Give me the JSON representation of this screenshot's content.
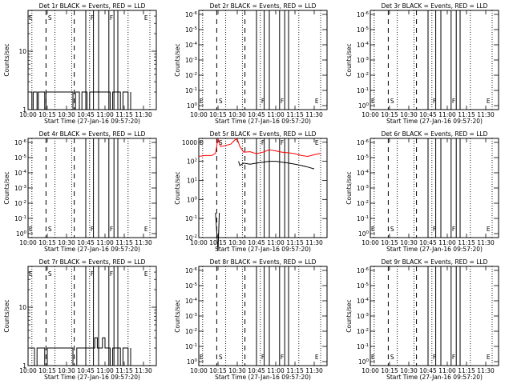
{
  "chart_data": [
    {
      "type": "line",
      "title": "Det 1r BLACK = Events, RED = LLD",
      "ylabel": "Counts/sec",
      "xlabel": "Start Time (27-Jan-16 09:57:20)",
      "xticks": [
        "10:00",
        "10:15",
        "10:30",
        "10:45",
        "11:00",
        "11:15",
        "11:30"
      ],
      "yticks": [
        "1",
        "10"
      ],
      "yscale": "log",
      "ylim": [
        1,
        50
      ],
      "xlim": [
        "10:00",
        "11:40"
      ],
      "markers": [
        "E",
        "S",
        "F",
        "F",
        "E"
      ],
      "series": [
        {
          "color": "#000000",
          "x": [
            "10:01",
            "10:02",
            "10:03",
            "10:04",
            "10:05",
            "10:06",
            "10:07",
            "10:08",
            "10:09",
            "10:10",
            "10:11",
            "10:12",
            "10:13",
            "10:14",
            "10:15",
            "10:16",
            "10:20",
            "10:25",
            "10:30",
            "10:35",
            "10:37",
            "10:40",
            "10:42",
            "10:44",
            "10:46",
            "10:48",
            "10:50",
            "10:52",
            "10:54",
            "10:56",
            "10:58",
            "11:00",
            "11:02",
            "11:04",
            "11:06",
            "11:08",
            "11:10",
            "11:12",
            "11:14",
            "11:16",
            "11:18",
            "11:20"
          ],
          "y": [
            2,
            2,
            1,
            2,
            2,
            2,
            1,
            2,
            2,
            2,
            2,
            2,
            1,
            2,
            2,
            2,
            2,
            2,
            2,
            1,
            2,
            1,
            2,
            2,
            1,
            2,
            2,
            2,
            2,
            2,
            2,
            2,
            2,
            1,
            2,
            2,
            2,
            1,
            2,
            2,
            1,
            2
          ]
        }
      ]
    },
    {
      "type": "line",
      "title": "Det 2r BLACK = Events, RED = LLD",
      "ylabel": "Counts/sec",
      "xlabel": "Start Time (27-Jan-16 09:57:20)",
      "xticks": [
        "10:00",
        "10:15",
        "10:30",
        "10:45",
        "11:00",
        "11:15",
        "11:30"
      ],
      "yticks": [
        "10^0",
        "10^-1",
        "10^-2",
        "10^-3",
        "10^-4",
        "10^-5",
        "10^-6"
      ],
      "yscale": "log",
      "markers": [
        "E",
        "S",
        "F",
        "F",
        "E"
      ],
      "series": []
    },
    {
      "type": "line",
      "title": "Det 3r BLACK = Events, RED = LLD",
      "ylabel": "Counts/sec",
      "xlabel": "Start Time (27-Jan-16 09:57:20)",
      "xticks": [
        "10:00",
        "10:15",
        "10:30",
        "10:45",
        "11:00",
        "11:15",
        "11:30"
      ],
      "yticks": [
        "10^0",
        "10^-1",
        "10^-2",
        "10^-3",
        "10^-4",
        "10^-5",
        "10^-6"
      ],
      "yscale": "log",
      "markers": [
        "E",
        "S",
        "F",
        "F",
        "E"
      ],
      "series": []
    },
    {
      "type": "line",
      "title": "Det 4r BLACK = Events, RED = LLD",
      "ylabel": "Counts/sec",
      "xlabel": "Start Time (27-Jan-16 09:57:20)",
      "xticks": [
        "10:00",
        "10:15",
        "10:30",
        "10:45",
        "11:00",
        "11:15",
        "11:30"
      ],
      "yticks": [
        "10^0",
        "10^-1",
        "10^-2",
        "10^-3",
        "10^-4",
        "10^-5",
        "10^-6"
      ],
      "yscale": "log",
      "markers": [
        "E",
        "S",
        "F",
        "F",
        "E"
      ],
      "series": []
    },
    {
      "type": "line",
      "title": "Det 5r BLACK = Events, RED = LLD",
      "ylabel": "Counts/sec",
      "xlabel": "Start Time (27-Jan-16 09:57:20)",
      "xticks": [
        "10:00",
        "10:15",
        "10:30",
        "10:45",
        "11:00",
        "11:15",
        "11:30"
      ],
      "yticks": [
        "1000",
        "10^2",
        "10^1",
        "10^0",
        "10^-1",
        "10^-2"
      ],
      "yscale": "log",
      "markers": [
        "E",
        "S",
        "F",
        "F",
        "E"
      ],
      "series": [
        {
          "color": "#ff0000",
          "x": [
            "10:00",
            "10:05",
            "10:10",
            "10:13",
            "10:15",
            "10:17",
            "10:20",
            "10:25",
            "10:28",
            "10:30",
            "10:32",
            "10:35",
            "10:40",
            "10:45",
            "10:50",
            "10:55",
            "11:00",
            "11:05",
            "11:10",
            "11:15",
            "11:20",
            "11:25",
            "11:30",
            "11:35"
          ],
          "y": [
            180,
            200,
            200,
            260,
            1500,
            600,
            650,
            800,
            1300,
            1500,
            600,
            300,
            320,
            250,
            300,
            400,
            350,
            300,
            280,
            250,
            200,
            180,
            220,
            260
          ]
        },
        {
          "color": "#000000",
          "x": [
            "10:00",
            "10:05",
            "10:10",
            "10:13",
            "10:15",
            "10:16",
            "10:17",
            "10:18",
            "10:20",
            "10:25",
            "10:30",
            "10:31",
            "10:32",
            "10:35",
            "10:40",
            "10:45",
            "10:50",
            "10:55",
            "11:00",
            "11:05",
            "11:10",
            "11:15",
            "11:20",
            "11:25",
            "11:30"
          ],
          "y": [
            null,
            null,
            null,
            0.2,
            0.002,
            0.2,
            null,
            null,
            null,
            null,
            null,
            100,
            60,
            80,
            70,
            80,
            90,
            100,
            100,
            90,
            80,
            70,
            60,
            50,
            40
          ]
        }
      ]
    },
    {
      "type": "line",
      "title": "Det 6r BLACK = Events, RED = LLD",
      "ylabel": "Counts/sec",
      "xlabel": "Start Time (27-Jan-16 09:57:20)",
      "xticks": [
        "10:00",
        "10:15",
        "10:30",
        "10:45",
        "11:00",
        "11:15",
        "11:30"
      ],
      "yticks": [
        "10^0",
        "10^-1",
        "10^-2",
        "10^-3",
        "10^-4",
        "10^-5",
        "10^-6"
      ],
      "yscale": "log",
      "markers": [
        "E",
        "S",
        "F",
        "F",
        "E"
      ],
      "series": []
    },
    {
      "type": "line",
      "title": "Det 7r BLACK = Events, RED = LLD",
      "ylabel": "Counts/sec",
      "xlabel": "Start Time (27-Jan-16 09:57:20)",
      "xticks": [
        "10:00",
        "10:15",
        "10:30",
        "10:45",
        "11:00",
        "11:15",
        "11:30"
      ],
      "yticks": [
        "1",
        "10"
      ],
      "yscale": "log",
      "ylim": [
        1,
        50
      ],
      "xlim": [
        "10:00",
        "11:40"
      ],
      "markers": [
        "E",
        "S",
        "F",
        "F",
        "E"
      ],
      "series": [
        {
          "color": "#000000",
          "x": [
            "10:01",
            "10:03",
            "10:05",
            "10:07",
            "10:09",
            "10:11",
            "10:13",
            "10:15",
            "10:20",
            "10:25",
            "10:30",
            "10:35",
            "10:38",
            "10:40",
            "10:42",
            "10:44",
            "10:46",
            "10:48",
            "10:50",
            "10:52",
            "10:54",
            "10:56",
            "10:58",
            "11:00",
            "11:02",
            "11:04",
            "11:06",
            "11:08",
            "11:10",
            "11:12",
            "11:14",
            "11:16",
            "11:18",
            "11:20"
          ],
          "y": [
            2,
            2,
            1,
            2,
            2,
            2,
            1,
            2,
            2,
            2,
            2,
            1,
            2,
            2,
            2,
            2,
            2,
            2,
            2,
            3,
            2,
            2,
            3,
            2,
            2,
            1,
            2,
            2,
            2,
            1,
            2,
            2,
            1,
            2
          ]
        }
      ]
    },
    {
      "type": "line",
      "title": "Det 8r BLACK = Events, RED = LLD",
      "ylabel": "Counts/sec",
      "xlabel": "Start Time (27-Jan-16 09:57:20)",
      "xticks": [
        "10:00",
        "10:15",
        "10:30",
        "10:45",
        "11:00",
        "11:15",
        "11:30"
      ],
      "yticks": [
        "10^0",
        "10^-1",
        "10^-2",
        "10^-3",
        "10^-4",
        "10^-5",
        "10^-6"
      ],
      "yscale": "log",
      "markers": [
        "E",
        "S",
        "F",
        "F",
        "E"
      ],
      "series": []
    },
    {
      "type": "line",
      "title": "Det 9r BLACK = Events, RED = LLD",
      "ylabel": "Counts/sec",
      "xlabel": "Start Time (27-Jan-16 09:57:20)",
      "xticks": [
        "10:00",
        "10:15",
        "10:30",
        "10:45",
        "11:00",
        "11:15",
        "11:30"
      ],
      "yticks": [
        "10^0",
        "10^-1",
        "10^-2",
        "10^-3",
        "10^-4",
        "10^-5",
        "10^-6"
      ],
      "yscale": "log",
      "markers": [
        "E",
        "S",
        "F",
        "F",
        "E"
      ],
      "series": []
    }
  ]
}
